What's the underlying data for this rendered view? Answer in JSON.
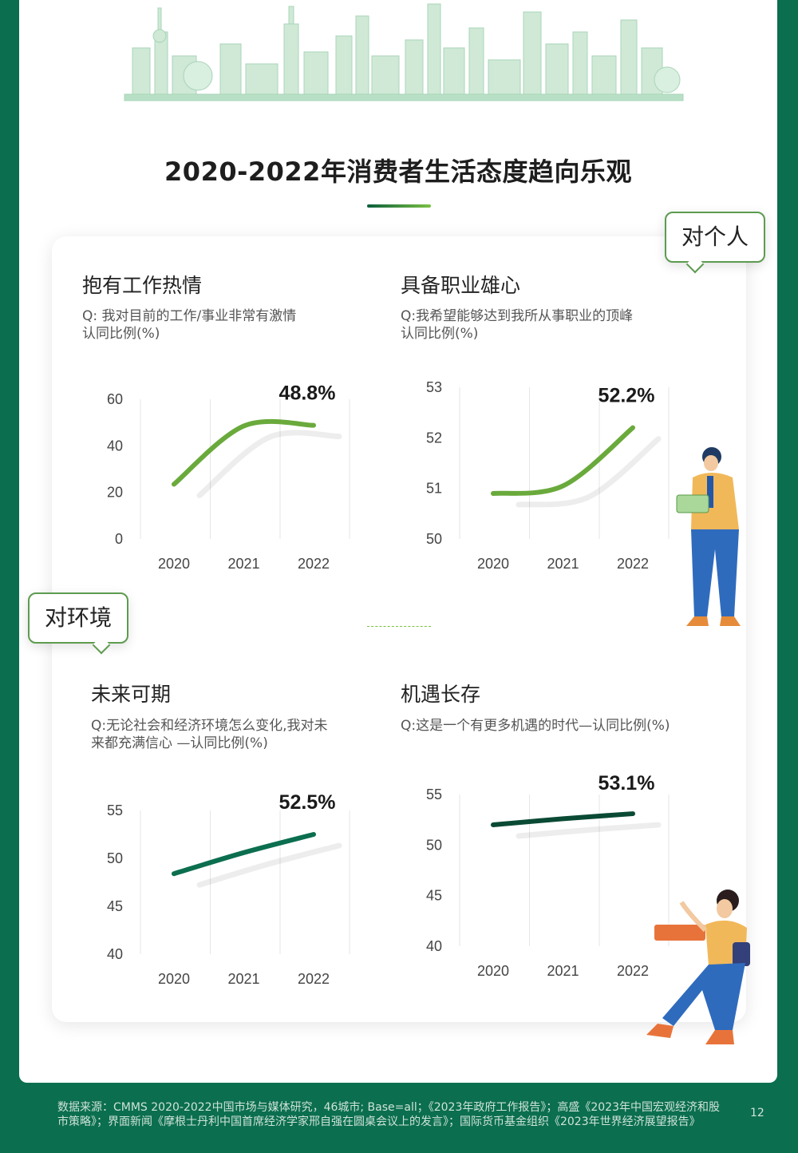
{
  "title": "2020-2022年消费者生活态度趋向乐观",
  "tags": {
    "personal": "对个人",
    "environment": "对环境"
  },
  "panels": [
    {
      "title": "抱有工作热情",
      "q_line1": "Q: 我对目前的工作/事业非常有激情",
      "q_line2": "认同比例(%)"
    },
    {
      "title": "具备职业雄心",
      "q_line1": "Q:我希望能够达到我所从事职业的顶峰",
      "q_line2": "认同比例(%)"
    },
    {
      "title": "未来可期",
      "q_line1": "Q:无论社会和经济环境怎么变化,我对未",
      "q_line2": "来都充满信心 —认同比例(%)"
    },
    {
      "title": "机遇长存",
      "q_line1": "Q:这是一个有更多机遇的时代—认同比例(%)",
      "q_line2": ""
    }
  ],
  "chart_data": [
    {
      "type": "line",
      "x": [
        "2020",
        "2021",
        "2022"
      ],
      "values": [
        23.5,
        48.5,
        48.8
      ],
      "ylim": [
        0,
        60
      ],
      "yticks": [
        0,
        20,
        40,
        60
      ],
      "label_2022": "48.8%",
      "color": "#6aaa3c"
    },
    {
      "type": "line",
      "x": [
        "2020",
        "2021",
        "2022"
      ],
      "values": [
        50.9,
        51.05,
        52.2
      ],
      "ylim": [
        50,
        53
      ],
      "yticks": [
        50,
        51,
        52,
        53
      ],
      "label_2022": "52.2%",
      "color": "#6aaa3c"
    },
    {
      "type": "line",
      "x": [
        "2020",
        "2021",
        "2022"
      ],
      "values": [
        48.4,
        50.6,
        52.5
      ],
      "ylim": [
        40,
        55
      ],
      "yticks": [
        40,
        45,
        50,
        55
      ],
      "label_2022": "52.5%",
      "color": "#0b6e4f"
    },
    {
      "type": "line",
      "x": [
        "2020",
        "2021",
        "2022"
      ],
      "values": [
        52.0,
        52.6,
        53.1
      ],
      "ylim": [
        40,
        55
      ],
      "yticks": [
        40,
        45,
        50,
        55
      ],
      "label_2022": "53.1%",
      "color": "#0a4a35"
    }
  ],
  "footer": {
    "line1": "数据来源：CMMS 2020-2022中国市场与媒体研究，46城市; Base=all；《2023年政府工作报告》；高盛《2023年中国宏观经济和股",
    "line2": "市策略》；界面新闻《摩根士丹利中国首席经济学家邢自强在圆桌会议上的发言》；国际货币基金组织《2023年世界经济展望报告》",
    "page": "12"
  }
}
